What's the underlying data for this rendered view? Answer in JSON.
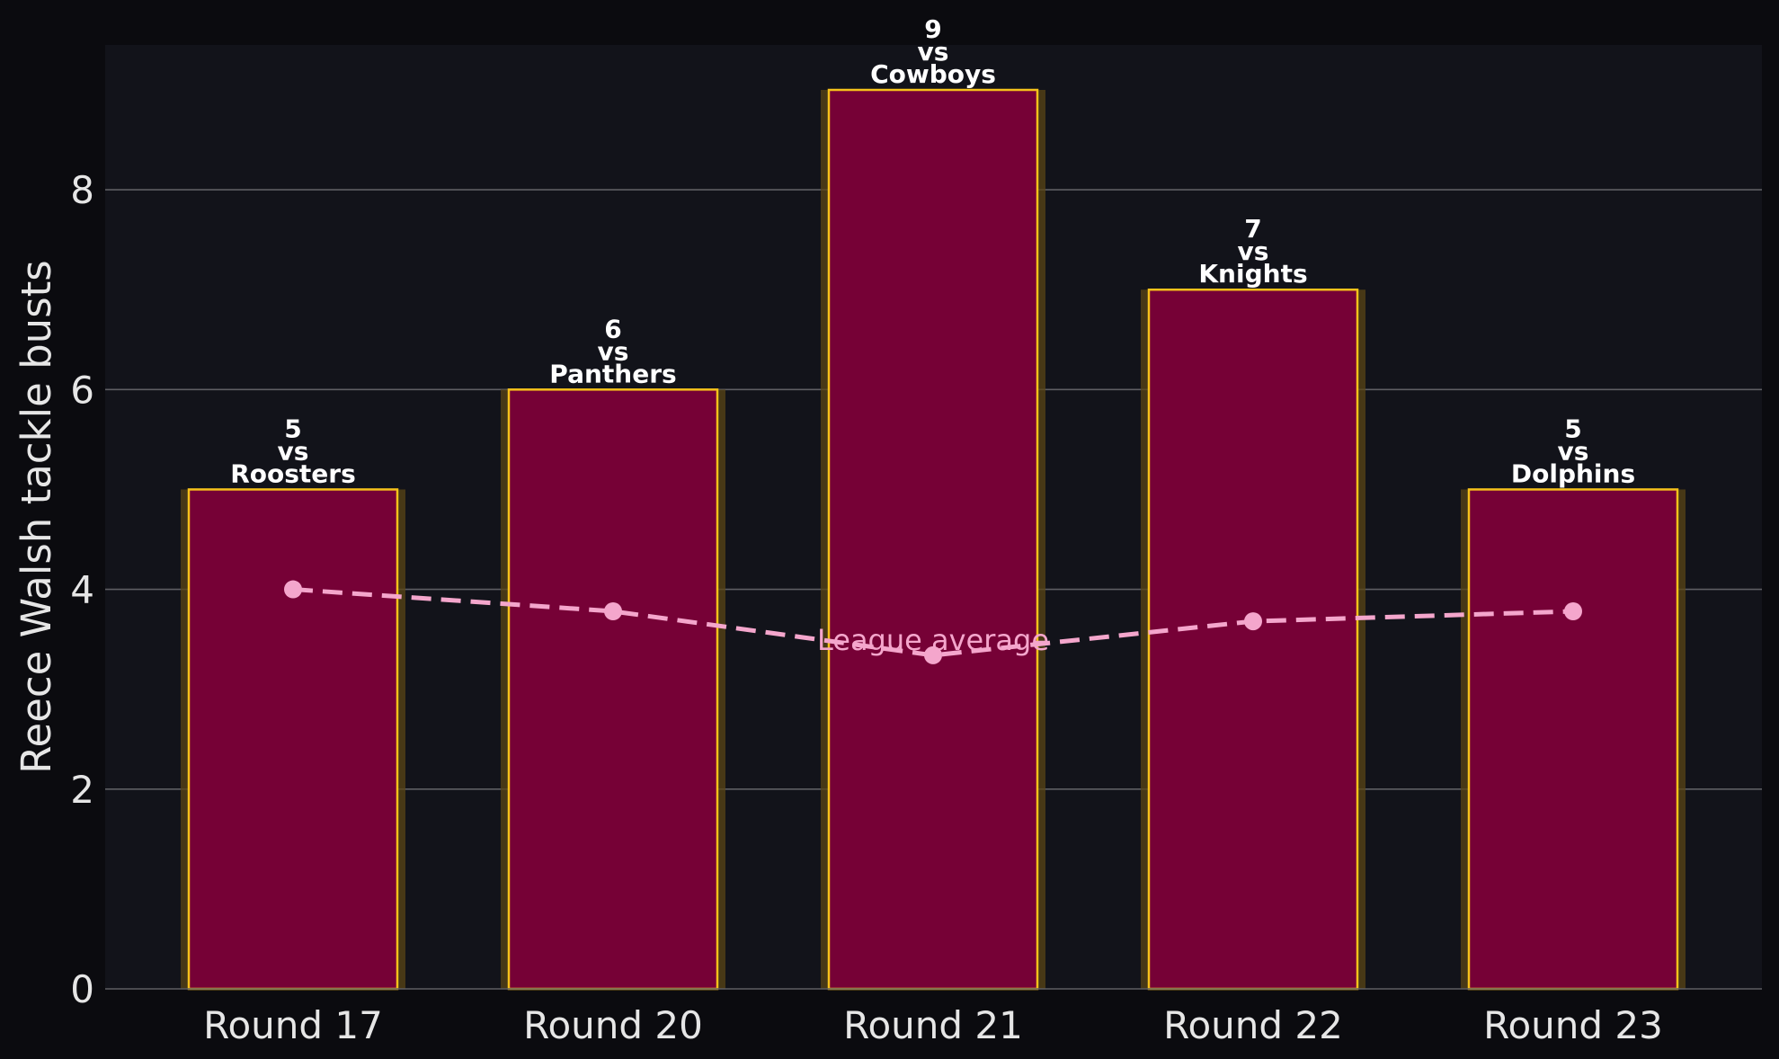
{
  "chart_data": {
    "type": "bar",
    "categories": [
      "Round 17",
      "Round 20",
      "Round 21",
      "Round 22",
      "Round 23"
    ],
    "series": [
      {
        "values": [
          5,
          6,
          9,
          7,
          5
        ],
        "opponents": [
          "Roosters",
          "Panthers",
          "Cowboys",
          "Knights",
          "Dolphins"
        ]
      },
      {
        "name": "League average",
        "type": "line",
        "style": "dashed",
        "values": [
          4.0,
          3.78,
          3.34,
          3.68,
          3.78
        ]
      }
    ],
    "bar_label_connector": "vs",
    "xlabel": "",
    "ylabel": "Reece Walsh tackle busts",
    "ylim": [
      0,
      9.45
    ],
    "yticks": [
      0,
      2,
      4,
      6,
      8
    ],
    "grid": "horizontal",
    "legend": "none",
    "colors": {
      "page_background": "#0b0b0f",
      "plot_background": "#12131a",
      "bar_fill": "#760136",
      "bar_edge": "#f5c21b",
      "bar_glow": "#5a4515",
      "average_line": "#f4a6cc",
      "grid": "#5e5e63",
      "axis_text": "#e6e6e6",
      "bar_label_text": "#ffffff"
    }
  }
}
